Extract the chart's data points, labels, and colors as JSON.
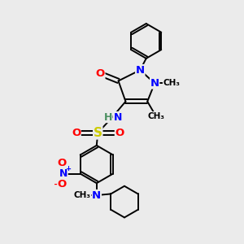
{
  "bg_color": "#ebebeb",
  "figsize": [
    3.0,
    3.0
  ],
  "dpi": 100,
  "colors": {
    "N": "#0000ff",
    "O": "#ff0000",
    "S": "#cccc00",
    "H": "#4a9060",
    "C": "#000000",
    "bond": "#000000"
  },
  "lw": 1.4,
  "xlim": [
    0,
    10
  ],
  "ylim": [
    0,
    10
  ]
}
